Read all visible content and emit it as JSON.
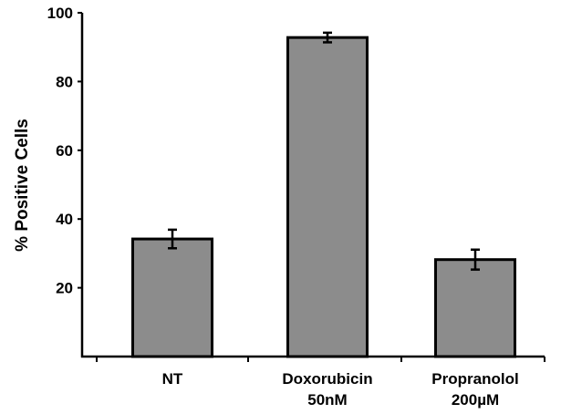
{
  "chart_data": {
    "type": "bar",
    "title": "",
    "xlabel": "",
    "ylabel": "% Positive Cells",
    "ylim": [
      0,
      100
    ],
    "yticks": [
      20,
      40,
      60,
      80,
      100
    ],
    "grid": false,
    "categories": [
      {
        "line1": "NT",
        "line2": ""
      },
      {
        "line1": "Doxorubicin",
        "line2": "50nM"
      },
      {
        "line1": "Propranolol",
        "line2": "200µM"
      }
    ],
    "values": [
      34.2,
      92.8,
      28.2
    ],
    "errors": [
      2.7,
      1.4,
      2.9
    ],
    "colors": {
      "bar_fill": "#8c8c8c",
      "bar_stroke": "#000000",
      "axis": "#000000"
    }
  }
}
